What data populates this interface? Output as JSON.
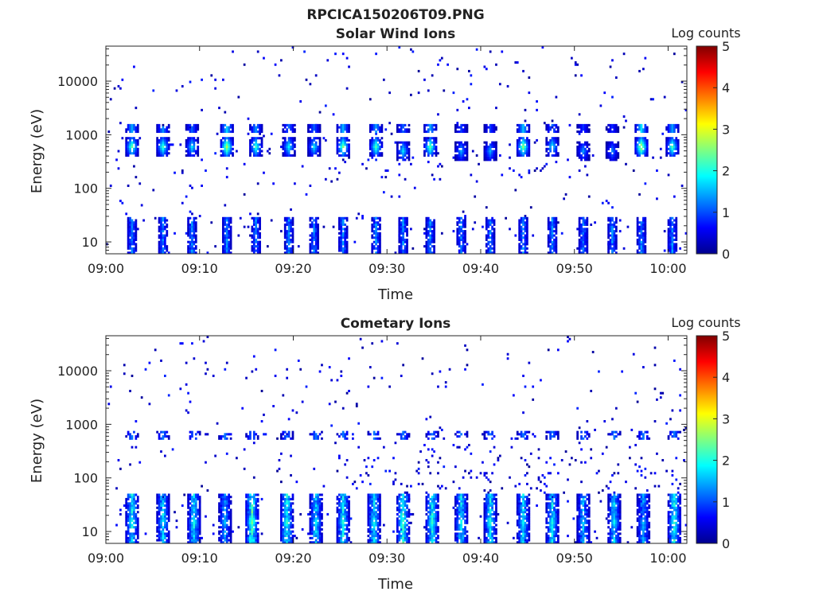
{
  "figure": {
    "title": "RPCICA150206T09.PNG"
  },
  "chart_data": [
    {
      "type": "heatmap",
      "title": "Solar Wind Ions",
      "xlabel": "Time",
      "ylabel": "Energy (eV)",
      "xlim": [
        "09:00",
        "10:02"
      ],
      "ylim": [
        6,
        45000
      ],
      "y_scale": "log",
      "x_ticks": [
        "09:00",
        "09:10",
        "09:20",
        "09:30",
        "09:40",
        "09:50",
        "10:00"
      ],
      "y_ticks": [
        {
          "value": 10,
          "label": "10"
        },
        {
          "value": 100,
          "label": "100"
        },
        {
          "value": 1000,
          "label": "1000"
        },
        {
          "value": 10000,
          "label": "10000"
        }
      ],
      "colorbar": {
        "label": "Log counts",
        "range": [
          0,
          5
        ],
        "ticks": [
          "0",
          "1",
          "2",
          "3",
          "4",
          "5"
        ],
        "colormap": "jet"
      },
      "grid": false,
      "bursts": [
        {
          "t": 2.7,
          "peak_energy": 600,
          "peak_log": 2.4
        },
        {
          "t": 5.9,
          "peak_energy": 600,
          "peak_log": 2.2
        },
        {
          "t": 9.1,
          "peak_energy": 600,
          "peak_log": 1.8
        },
        {
          "t": 12.9,
          "peak_energy": 600,
          "peak_log": 2.8
        },
        {
          "t": 16.0,
          "peak_energy": 600,
          "peak_log": 2.2
        },
        {
          "t": 19.5,
          "peak_energy": 600,
          "peak_log": 1.9
        },
        {
          "t": 22.2,
          "peak_energy": 600,
          "peak_log": 1.8
        },
        {
          "t": 25.3,
          "peak_energy": 600,
          "peak_log": 2.5
        },
        {
          "t": 28.8,
          "peak_energy": 600,
          "peak_log": 2.3
        },
        {
          "t": 31.6,
          "peak_energy": 500,
          "peak_log": 1.8
        },
        {
          "t": 34.5,
          "peak_energy": 600,
          "peak_log": 2.4
        },
        {
          "t": 37.9,
          "peak_energy": 500,
          "peak_log": 1.5
        },
        {
          "t": 41.0,
          "peak_energy": 500,
          "peak_log": 1.5
        },
        {
          "t": 44.5,
          "peak_energy": 600,
          "peak_log": 2.6
        },
        {
          "t": 47.5,
          "peak_energy": 600,
          "peak_log": 1.9
        },
        {
          "t": 50.9,
          "peak_energy": 500,
          "peak_log": 1.4
        },
        {
          "t": 54.0,
          "peak_energy": 500,
          "peak_log": 1.3
        },
        {
          "t": 57.1,
          "peak_energy": 600,
          "peak_log": 2.9
        },
        {
          "t": 60.3,
          "peak_energy": 600,
          "peak_log": 2.3
        }
      ]
    },
    {
      "type": "heatmap",
      "title": "Cometary Ions",
      "xlabel": "Time",
      "ylabel": "Energy (eV)",
      "xlim": [
        "09:00",
        "10:02"
      ],
      "ylim": [
        6,
        45000
      ],
      "y_scale": "log",
      "x_ticks": [
        "09:00",
        "09:10",
        "09:20",
        "09:30",
        "09:40",
        "09:50",
        "10:00"
      ],
      "y_ticks": [
        {
          "value": 10,
          "label": "10"
        },
        {
          "value": 100,
          "label": "100"
        },
        {
          "value": 1000,
          "label": "1000"
        },
        {
          "value": 10000,
          "label": "10000"
        }
      ],
      "colorbar": {
        "label": "Log counts",
        "range": [
          0,
          5
        ],
        "ticks": [
          "0",
          "1",
          "2",
          "3",
          "4",
          "5"
        ],
        "colormap": "jet"
      },
      "grid": false,
      "bursts": [
        {
          "t": 2.7,
          "peak_energy": 15,
          "peak_log": 2.2
        },
        {
          "t": 5.9,
          "peak_energy": 15,
          "peak_log": 2.0
        },
        {
          "t": 9.4,
          "peak_energy": 15,
          "peak_log": 2.1
        },
        {
          "t": 12.6,
          "peak_energy": 15,
          "peak_log": 1.7
        },
        {
          "t": 15.4,
          "peak_energy": 15,
          "peak_log": 2.6
        },
        {
          "t": 19.2,
          "peak_energy": 15,
          "peak_log": 2.3
        },
        {
          "t": 22.4,
          "peak_energy": 15,
          "peak_log": 2.0
        },
        {
          "t": 25.3,
          "peak_energy": 15,
          "peak_log": 2.2
        },
        {
          "t": 28.6,
          "peak_energy": 15,
          "peak_log": 2.1
        },
        {
          "t": 31.6,
          "peak_energy": 15,
          "peak_log": 2.4
        },
        {
          "t": 34.7,
          "peak_energy": 15,
          "peak_log": 2.3
        },
        {
          "t": 37.9,
          "peak_energy": 15,
          "peak_log": 2.1
        },
        {
          "t": 41.0,
          "peak_energy": 15,
          "peak_log": 2.2
        },
        {
          "t": 44.4,
          "peak_energy": 15,
          "peak_log": 2.0
        },
        {
          "t": 47.5,
          "peak_energy": 15,
          "peak_log": 2.1
        },
        {
          "t": 50.8,
          "peak_energy": 15,
          "peak_log": 1.8
        },
        {
          "t": 54.1,
          "peak_energy": 15,
          "peak_log": 2.0
        },
        {
          "t": 57.2,
          "peak_energy": 15,
          "peak_log": 1.7
        },
        {
          "t": 60.5,
          "peak_energy": 15,
          "peak_log": 2.3
        }
      ]
    }
  ]
}
